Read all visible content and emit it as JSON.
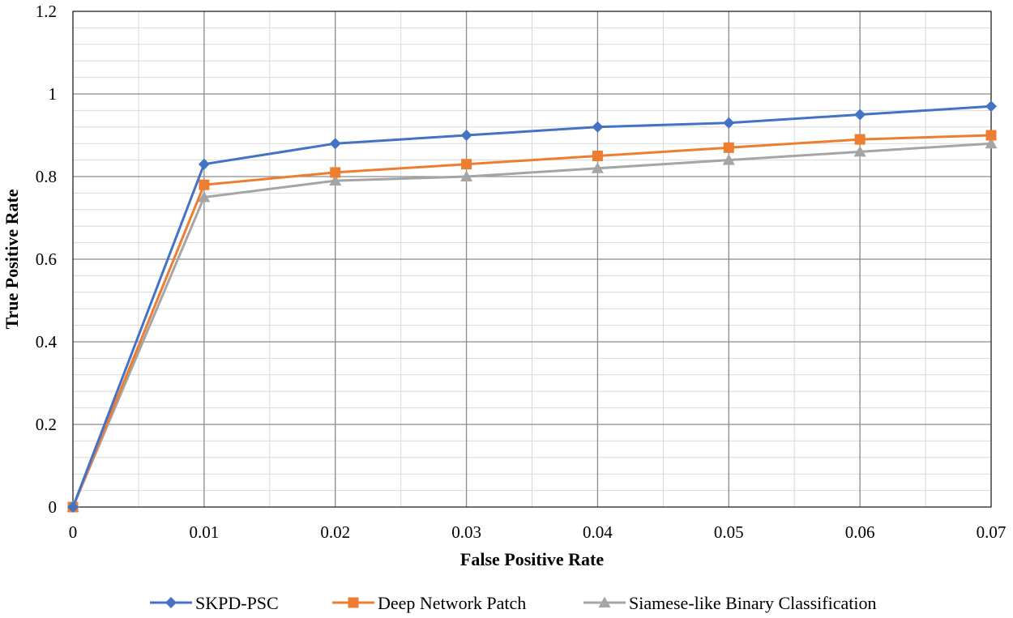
{
  "chart_data": {
    "type": "line",
    "title": "",
    "xlabel": "False Positive Rate",
    "ylabel": "True Positive Rate",
    "xlim": [
      0,
      0.07
    ],
    "ylim": [
      0,
      1.2
    ],
    "x_ticks": [
      "0",
      "0.01",
      "0.02",
      "0.03",
      "0.04",
      "0.05",
      "0.06",
      "0.07"
    ],
    "y_ticks": [
      "0",
      "0.2",
      "0.4",
      "0.6",
      "0.8",
      "1",
      "1.2"
    ],
    "grid": true,
    "legend_position": "bottom",
    "x": [
      0,
      0.01,
      0.02,
      0.03,
      0.04,
      0.05,
      0.06,
      0.07
    ],
    "series": [
      {
        "name": "SKPD-PSC",
        "color": "#4472C4",
        "marker": "diamond",
        "values": [
          0,
          0.83,
          0.88,
          0.9,
          0.92,
          0.93,
          0.95,
          0.97
        ]
      },
      {
        "name": "Deep Network Patch",
        "color": "#ED7D31",
        "marker": "square",
        "values": [
          0,
          0.78,
          0.81,
          0.83,
          0.85,
          0.87,
          0.89,
          0.9
        ]
      },
      {
        "name": "Siamese-like Binary Classification",
        "color": "#A5A5A5",
        "marker": "triangle",
        "values": [
          0,
          0.75,
          0.79,
          0.8,
          0.82,
          0.84,
          0.86,
          0.88
        ]
      }
    ]
  }
}
